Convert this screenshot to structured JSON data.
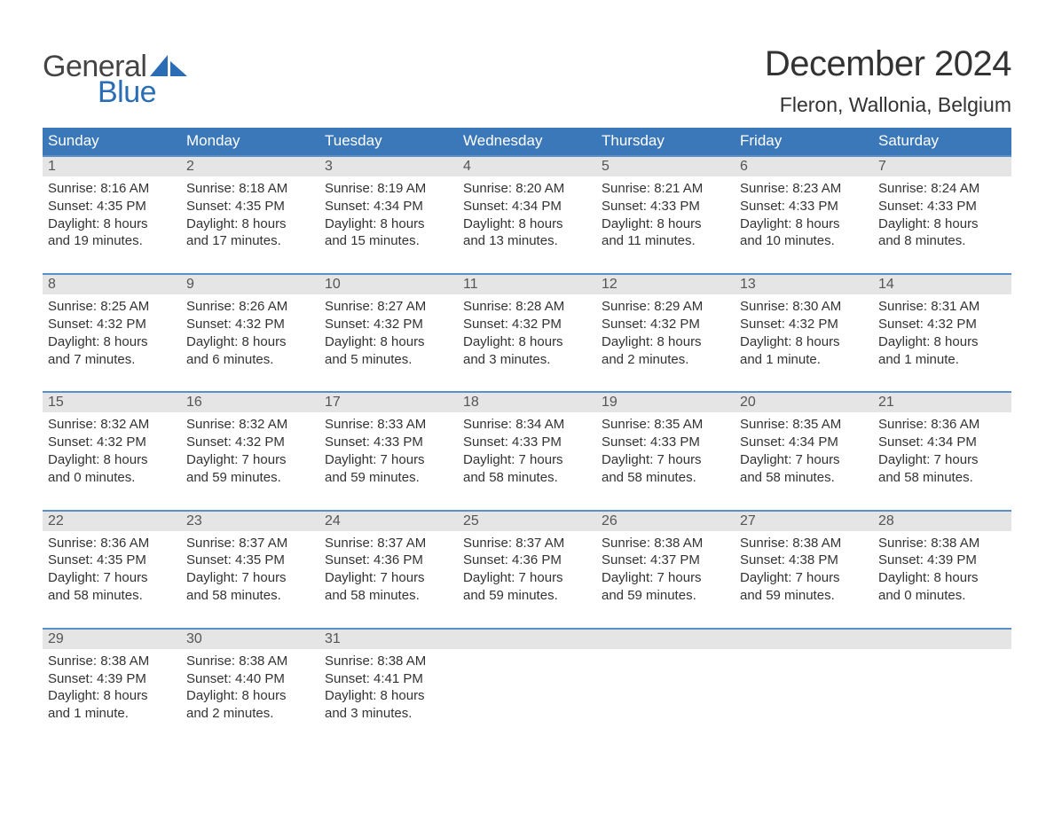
{
  "logo": {
    "text1": "General",
    "text2": "Blue",
    "sail_color": "#2a6db5",
    "text1_color": "#444444"
  },
  "title": "December 2024",
  "location": "Fleron, Wallonia, Belgium",
  "colors": {
    "header_bg": "#3b78b9",
    "header_text": "#ffffff",
    "week_border": "#5a8fc7",
    "daynum_bg": "#e5e5e5",
    "daynum_text": "#555555",
    "body_text": "#333333",
    "background": "#ffffff"
  },
  "typography": {
    "title_fontsize": 40,
    "location_fontsize": 23,
    "weekday_fontsize": 17,
    "daynum_fontsize": 16,
    "cell_fontsize": 15
  },
  "weekdays": [
    "Sunday",
    "Monday",
    "Tuesday",
    "Wednesday",
    "Thursday",
    "Friday",
    "Saturday"
  ],
  "weeks": [
    [
      {
        "num": "1",
        "sunrise": "Sunrise: 8:16 AM",
        "sunset": "Sunset: 4:35 PM",
        "dl1": "Daylight: 8 hours",
        "dl2": "and 19 minutes."
      },
      {
        "num": "2",
        "sunrise": "Sunrise: 8:18 AM",
        "sunset": "Sunset: 4:35 PM",
        "dl1": "Daylight: 8 hours",
        "dl2": "and 17 minutes."
      },
      {
        "num": "3",
        "sunrise": "Sunrise: 8:19 AM",
        "sunset": "Sunset: 4:34 PM",
        "dl1": "Daylight: 8 hours",
        "dl2": "and 15 minutes."
      },
      {
        "num": "4",
        "sunrise": "Sunrise: 8:20 AM",
        "sunset": "Sunset: 4:34 PM",
        "dl1": "Daylight: 8 hours",
        "dl2": "and 13 minutes."
      },
      {
        "num": "5",
        "sunrise": "Sunrise: 8:21 AM",
        "sunset": "Sunset: 4:33 PM",
        "dl1": "Daylight: 8 hours",
        "dl2": "and 11 minutes."
      },
      {
        "num": "6",
        "sunrise": "Sunrise: 8:23 AM",
        "sunset": "Sunset: 4:33 PM",
        "dl1": "Daylight: 8 hours",
        "dl2": "and 10 minutes."
      },
      {
        "num": "7",
        "sunrise": "Sunrise: 8:24 AM",
        "sunset": "Sunset: 4:33 PM",
        "dl1": "Daylight: 8 hours",
        "dl2": "and 8 minutes."
      }
    ],
    [
      {
        "num": "8",
        "sunrise": "Sunrise: 8:25 AM",
        "sunset": "Sunset: 4:32 PM",
        "dl1": "Daylight: 8 hours",
        "dl2": "and 7 minutes."
      },
      {
        "num": "9",
        "sunrise": "Sunrise: 8:26 AM",
        "sunset": "Sunset: 4:32 PM",
        "dl1": "Daylight: 8 hours",
        "dl2": "and 6 minutes."
      },
      {
        "num": "10",
        "sunrise": "Sunrise: 8:27 AM",
        "sunset": "Sunset: 4:32 PM",
        "dl1": "Daylight: 8 hours",
        "dl2": "and 5 minutes."
      },
      {
        "num": "11",
        "sunrise": "Sunrise: 8:28 AM",
        "sunset": "Sunset: 4:32 PM",
        "dl1": "Daylight: 8 hours",
        "dl2": "and 3 minutes."
      },
      {
        "num": "12",
        "sunrise": "Sunrise: 8:29 AM",
        "sunset": "Sunset: 4:32 PM",
        "dl1": "Daylight: 8 hours",
        "dl2": "and 2 minutes."
      },
      {
        "num": "13",
        "sunrise": "Sunrise: 8:30 AM",
        "sunset": "Sunset: 4:32 PM",
        "dl1": "Daylight: 8 hours",
        "dl2": "and 1 minute."
      },
      {
        "num": "14",
        "sunrise": "Sunrise: 8:31 AM",
        "sunset": "Sunset: 4:32 PM",
        "dl1": "Daylight: 8 hours",
        "dl2": "and 1 minute."
      }
    ],
    [
      {
        "num": "15",
        "sunrise": "Sunrise: 8:32 AM",
        "sunset": "Sunset: 4:32 PM",
        "dl1": "Daylight: 8 hours",
        "dl2": "and 0 minutes."
      },
      {
        "num": "16",
        "sunrise": "Sunrise: 8:32 AM",
        "sunset": "Sunset: 4:32 PM",
        "dl1": "Daylight: 7 hours",
        "dl2": "and 59 minutes."
      },
      {
        "num": "17",
        "sunrise": "Sunrise: 8:33 AM",
        "sunset": "Sunset: 4:33 PM",
        "dl1": "Daylight: 7 hours",
        "dl2": "and 59 minutes."
      },
      {
        "num": "18",
        "sunrise": "Sunrise: 8:34 AM",
        "sunset": "Sunset: 4:33 PM",
        "dl1": "Daylight: 7 hours",
        "dl2": "and 58 minutes."
      },
      {
        "num": "19",
        "sunrise": "Sunrise: 8:35 AM",
        "sunset": "Sunset: 4:33 PM",
        "dl1": "Daylight: 7 hours",
        "dl2": "and 58 minutes."
      },
      {
        "num": "20",
        "sunrise": "Sunrise: 8:35 AM",
        "sunset": "Sunset: 4:34 PM",
        "dl1": "Daylight: 7 hours",
        "dl2": "and 58 minutes."
      },
      {
        "num": "21",
        "sunrise": "Sunrise: 8:36 AM",
        "sunset": "Sunset: 4:34 PM",
        "dl1": "Daylight: 7 hours",
        "dl2": "and 58 minutes."
      }
    ],
    [
      {
        "num": "22",
        "sunrise": "Sunrise: 8:36 AM",
        "sunset": "Sunset: 4:35 PM",
        "dl1": "Daylight: 7 hours",
        "dl2": "and 58 minutes."
      },
      {
        "num": "23",
        "sunrise": "Sunrise: 8:37 AM",
        "sunset": "Sunset: 4:35 PM",
        "dl1": "Daylight: 7 hours",
        "dl2": "and 58 minutes."
      },
      {
        "num": "24",
        "sunrise": "Sunrise: 8:37 AM",
        "sunset": "Sunset: 4:36 PM",
        "dl1": "Daylight: 7 hours",
        "dl2": "and 58 minutes."
      },
      {
        "num": "25",
        "sunrise": "Sunrise: 8:37 AM",
        "sunset": "Sunset: 4:36 PM",
        "dl1": "Daylight: 7 hours",
        "dl2": "and 59 minutes."
      },
      {
        "num": "26",
        "sunrise": "Sunrise: 8:38 AM",
        "sunset": "Sunset: 4:37 PM",
        "dl1": "Daylight: 7 hours",
        "dl2": "and 59 minutes."
      },
      {
        "num": "27",
        "sunrise": "Sunrise: 8:38 AM",
        "sunset": "Sunset: 4:38 PM",
        "dl1": "Daylight: 7 hours",
        "dl2": "and 59 minutes."
      },
      {
        "num": "28",
        "sunrise": "Sunrise: 8:38 AM",
        "sunset": "Sunset: 4:39 PM",
        "dl1": "Daylight: 8 hours",
        "dl2": "and 0 minutes."
      }
    ],
    [
      {
        "num": "29",
        "sunrise": "Sunrise: 8:38 AM",
        "sunset": "Sunset: 4:39 PM",
        "dl1": "Daylight: 8 hours",
        "dl2": "and 1 minute."
      },
      {
        "num": "30",
        "sunrise": "Sunrise: 8:38 AM",
        "sunset": "Sunset: 4:40 PM",
        "dl1": "Daylight: 8 hours",
        "dl2": "and 2 minutes."
      },
      {
        "num": "31",
        "sunrise": "Sunrise: 8:38 AM",
        "sunset": "Sunset: 4:41 PM",
        "dl1": "Daylight: 8 hours",
        "dl2": "and 3 minutes."
      },
      null,
      null,
      null,
      null
    ]
  ]
}
